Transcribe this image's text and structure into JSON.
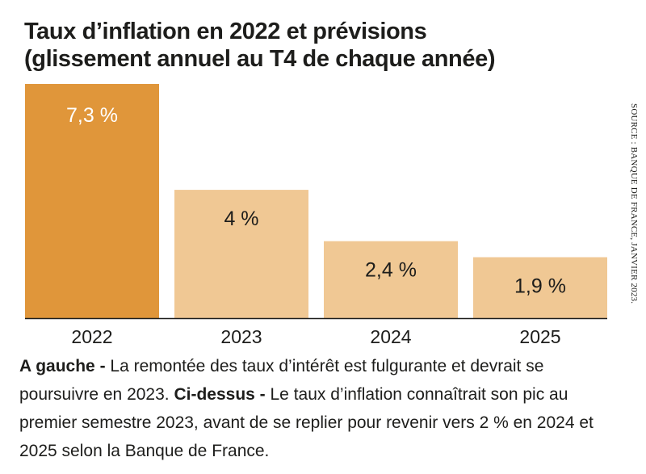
{
  "header": {
    "title_line1": "Taux d’inflation en 2022 et prévisions",
    "title_line2": "(glissement annuel au T4 de chaque année)"
  },
  "chart_data": {
    "type": "bar",
    "title": "Taux d’inflation en 2022 et prévisions (glissement annuel au T4 de chaque année)",
    "categories": [
      "2022",
      "2023",
      "2024",
      "2025"
    ],
    "values": [
      7.3,
      4.0,
      2.4,
      1.9
    ],
    "data_labels": [
      "7,3 %",
      "4 %",
      "2,4 %",
      "1,9 %"
    ],
    "xlabel": "",
    "ylabel": "",
    "ylim": [
      0,
      7.3
    ],
    "grid": false,
    "colors": {
      "actual": "#e0963a",
      "forecast": "#f0c894",
      "label_on_actual": "#ffffff",
      "label_on_forecast": "#1d1d1b",
      "baseline": "#1d1d1b"
    },
    "highlight_categories": [
      "2022"
    ]
  },
  "source": "SOURCE : BANQUE DE FRANCE, JANVIER 2023.",
  "caption": {
    "part1_bold": "A gauche -",
    "part1_text": " La remontée des taux d’intérêt est fulgurante et devrait se poursuivre en 2023. ",
    "part2_bold": "Ci-dessus -",
    "part2_text": " Le taux d’inflation connaîtrait son pic au premier semestre 2023, avant de se replier pour revenir vers 2 % en 2024 et 2025 selon la Banque de France."
  }
}
